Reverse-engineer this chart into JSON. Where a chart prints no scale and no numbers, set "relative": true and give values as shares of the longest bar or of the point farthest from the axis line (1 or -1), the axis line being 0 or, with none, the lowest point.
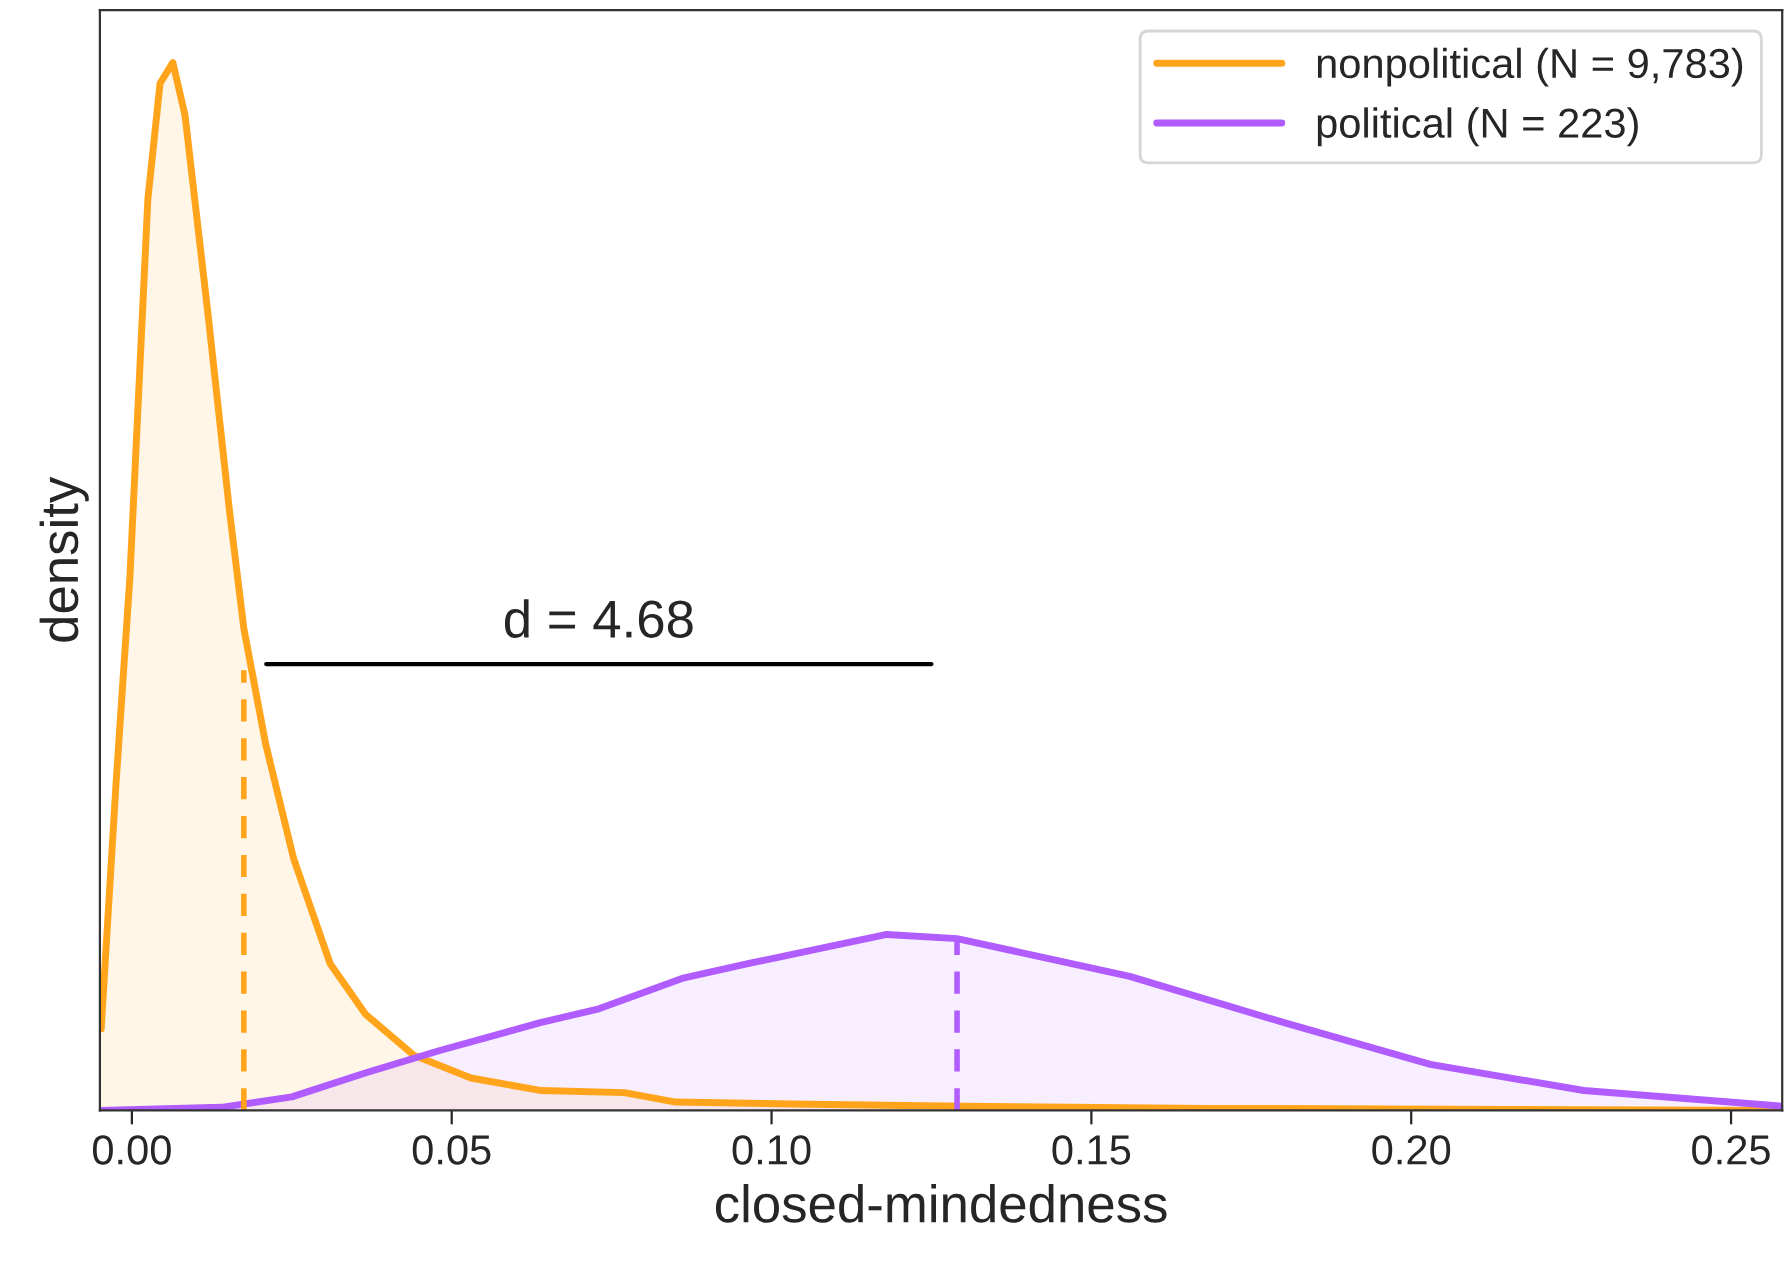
{
  "chart_data": {
    "type": "area",
    "relative": true,
    "xlabel": "closed-mindedness",
    "ylabel": "density",
    "xlim": [
      -0.005,
      0.258
    ],
    "xticks": [
      {
        "value": 0,
        "label": "0.00"
      },
      {
        "value": 0.05,
        "label": "0.05"
      },
      {
        "value": 0.1,
        "label": "0.10"
      },
      {
        "value": 0.15,
        "label": "0.15"
      },
      {
        "value": 0.2,
        "label": "0.20"
      },
      {
        "value": 0.25,
        "label": "0.25"
      }
    ],
    "legend": "top right",
    "grid": false,
    "series": [
      {
        "name": "nonpolitical (N = 9,783)",
        "color": "#ffa41b",
        "x": [
          -0.0048,
          -0.0025,
          -0.0003,
          0.0025,
          0.0044,
          0.0064,
          0.0083,
          0.0119,
          0.0153,
          0.0175,
          0.0209,
          0.0253,
          0.031,
          0.0365,
          0.044,
          0.053,
          0.064,
          0.077,
          0.085,
          0.106,
          0.13,
          0.168,
          0.215,
          0.258
        ],
        "values": [
          0.078,
          0.31,
          0.51,
          0.87,
          0.98,
          1.0,
          0.95,
          0.76,
          0.57,
          0.46,
          0.35,
          0.24,
          0.14,
          0.092,
          0.053,
          0.031,
          0.019,
          0.017,
          0.008,
          0.006,
          0.004,
          0.002,
          0.001,
          0.0
        ]
      },
      {
        "name": "political (N = 223)",
        "color": "#b15cff",
        "x": [
          -0.0048,
          0.014,
          0.025,
          0.0366,
          0.048,
          0.064,
          0.073,
          0.086,
          0.097,
          0.118,
          0.129,
          0.156,
          0.18,
          0.203,
          0.227,
          0.258
        ],
        "values": [
          0.0,
          0.003,
          0.013,
          0.036,
          0.057,
          0.084,
          0.097,
          0.126,
          0.141,
          0.168,
          0.164,
          0.128,
          0.084,
          0.044,
          0.019,
          0.004
        ]
      },
      {
        "type": "line",
        "line_style": "dashed",
        "color": "#ffa41b",
        "x": [
          0.0175,
          0.0175
        ],
        "values": [
          0.0,
          0.42
        ]
      },
      {
        "type": "line",
        "line_style": "dashed",
        "color": "#b15cff",
        "x": [
          0.129,
          0.129
        ],
        "values": [
          0.0,
          0.164
        ]
      },
      {
        "type": "line",
        "line_style": "solid",
        "color": "#000000",
        "x": [
          0.021,
          0.125
        ],
        "values": [
          0.426,
          0.426
        ]
      }
    ],
    "annotations": [
      {
        "text": "d = 4.68",
        "x": 0.073,
        "y": 0.426
      }
    ]
  }
}
